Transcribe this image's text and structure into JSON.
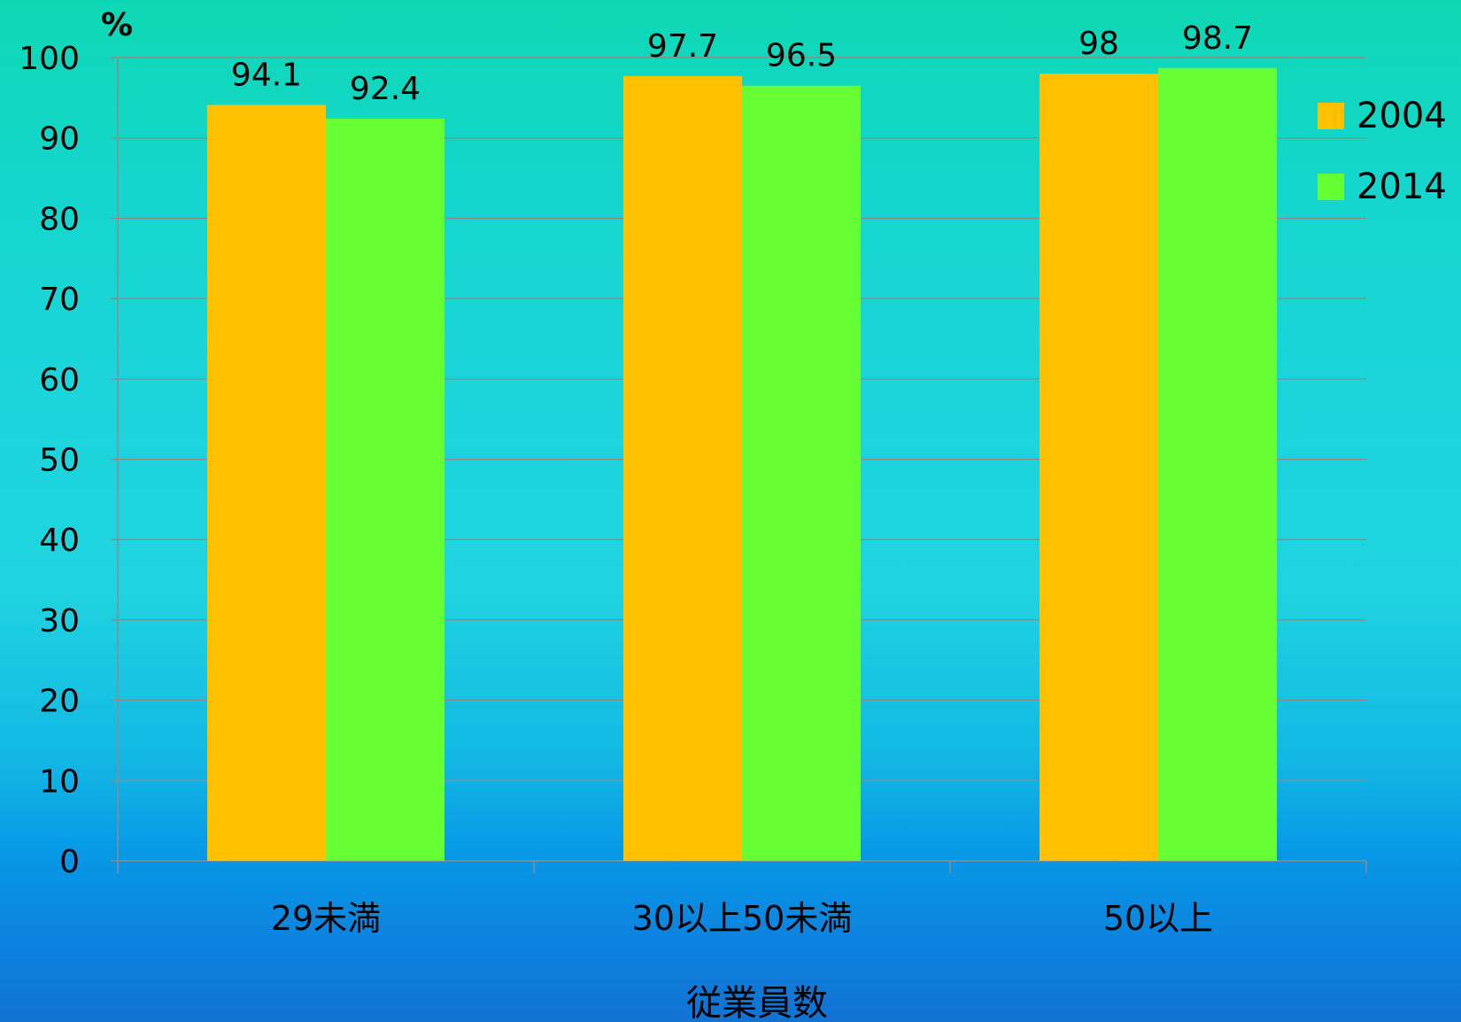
{
  "chart_data": {
    "type": "bar",
    "title": "",
    "unit_label": "%",
    "xlabel": "従業員数",
    "ylabel": "",
    "ylim": [
      0,
      100
    ],
    "yticks": [
      "0",
      "10",
      "20",
      "30",
      "40",
      "50",
      "60",
      "70",
      "80",
      "90",
      "100"
    ],
    "grid": true,
    "legend_position": "right",
    "categories": [
      "29未満",
      "30以上50未満",
      "50以上"
    ],
    "series": [
      {
        "name": "2004",
        "color": "#ffc000",
        "values": [
          94.1,
          97.7,
          98
        ],
        "labels": [
          "94.1",
          "97.7",
          "98"
        ]
      },
      {
        "name": "2014",
        "color": "#66ff33",
        "values": [
          92.4,
          96.5,
          98.7
        ],
        "labels": [
          "92.4",
          "96.5",
          "98.7"
        ]
      }
    ]
  }
}
